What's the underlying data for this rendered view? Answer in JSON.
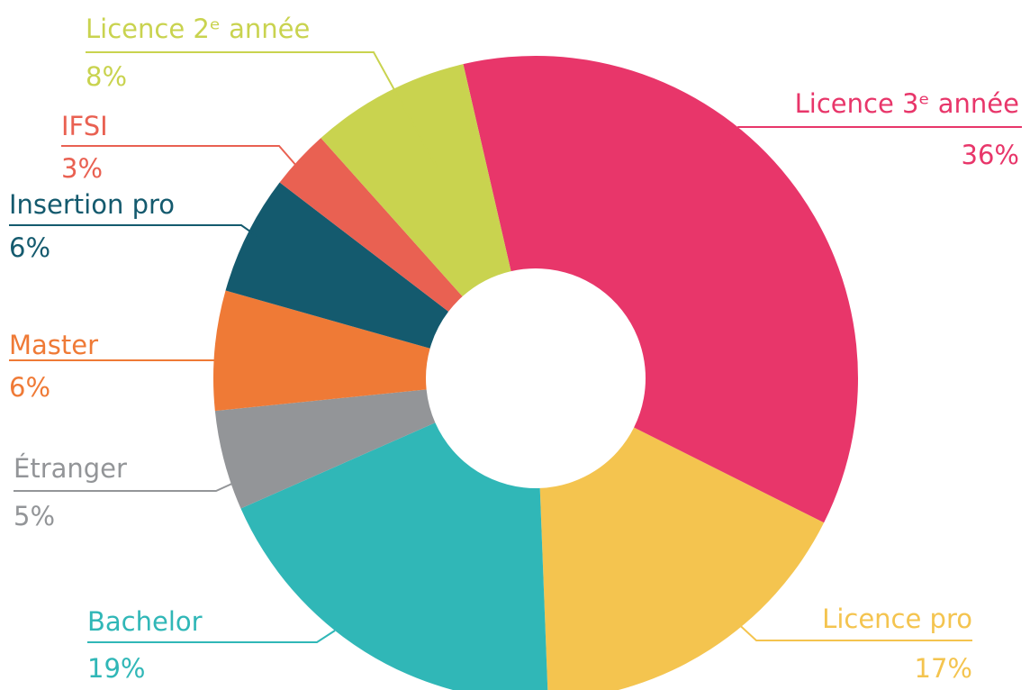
{
  "chart_data": {
    "type": "donut",
    "categories": [
      "Licence 3ᵉ année",
      "Licence pro",
      "Bachelor",
      "Étranger",
      "Master",
      "Insertion pro",
      "IFSI",
      "Licence 2ᵉ année"
    ],
    "values": [
      36,
      17,
      19,
      5,
      6,
      6,
      3,
      8
    ],
    "value_labels": [
      "36%",
      "17%",
      "19%",
      "5%",
      "6%",
      "6%",
      "3%",
      "8%"
    ],
    "colors": [
      "#e8366a",
      "#f4c44f",
      "#30b7b7",
      "#939598",
      "#ef7a36",
      "#145a6e",
      "#e96152",
      "#c9d34f"
    ]
  }
}
